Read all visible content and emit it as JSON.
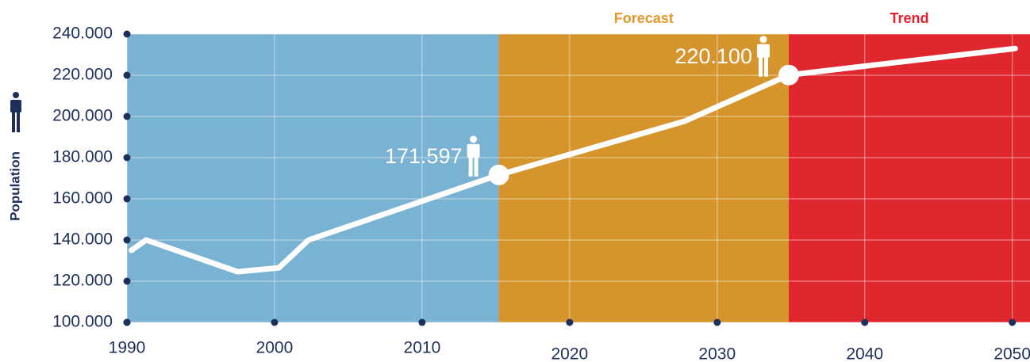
{
  "chart_data": {
    "type": "line",
    "y_label": "Population",
    "x": [
      1990.3,
      1991.3,
      1997.5,
      2000.3,
      2002.3,
      2015.2,
      2027.8,
      2034.85,
      2050.2
    ],
    "values": [
      135000,
      140000,
      124600,
      126500,
      140000,
      171597,
      197700,
      220100,
      233000
    ],
    "value_labels": [
      null,
      null,
      null,
      null,
      null,
      "171.597",
      null,
      "220.100",
      null
    ],
    "line_color": "#ffffff",
    "xlim": [
      1990,
      2051.2
    ],
    "ylim": [
      100000,
      240000
    ],
    "xticks": [
      1990,
      2000,
      2010,
      2020,
      2030,
      2040,
      2050
    ],
    "yticks": [
      {
        "value": 100000,
        "label": "100.000"
      },
      {
        "value": 120000,
        "label": "120.000"
      },
      {
        "value": 140000,
        "label": "140.000"
      },
      {
        "value": 160000,
        "label": "160.000"
      },
      {
        "value": 180000,
        "label": "180.000"
      },
      {
        "value": 200000,
        "label": "200.000"
      },
      {
        "value": 220000,
        "label": "220.000"
      },
      {
        "value": 240000,
        "label": "240.000"
      }
    ],
    "regions": [
      {
        "start": 1990,
        "end": 2015.2,
        "color": "#79b2d2"
      },
      {
        "label": "Forecast",
        "start": 2015.2,
        "end": 2034.85,
        "color": "#d6942c",
        "label_color": "#e8962a"
      },
      {
        "label": "Trend",
        "start": 2034.85,
        "end": 2051.2,
        "color": "#df272d",
        "label_color": "#e0202b"
      }
    ],
    "grid": true
  }
}
